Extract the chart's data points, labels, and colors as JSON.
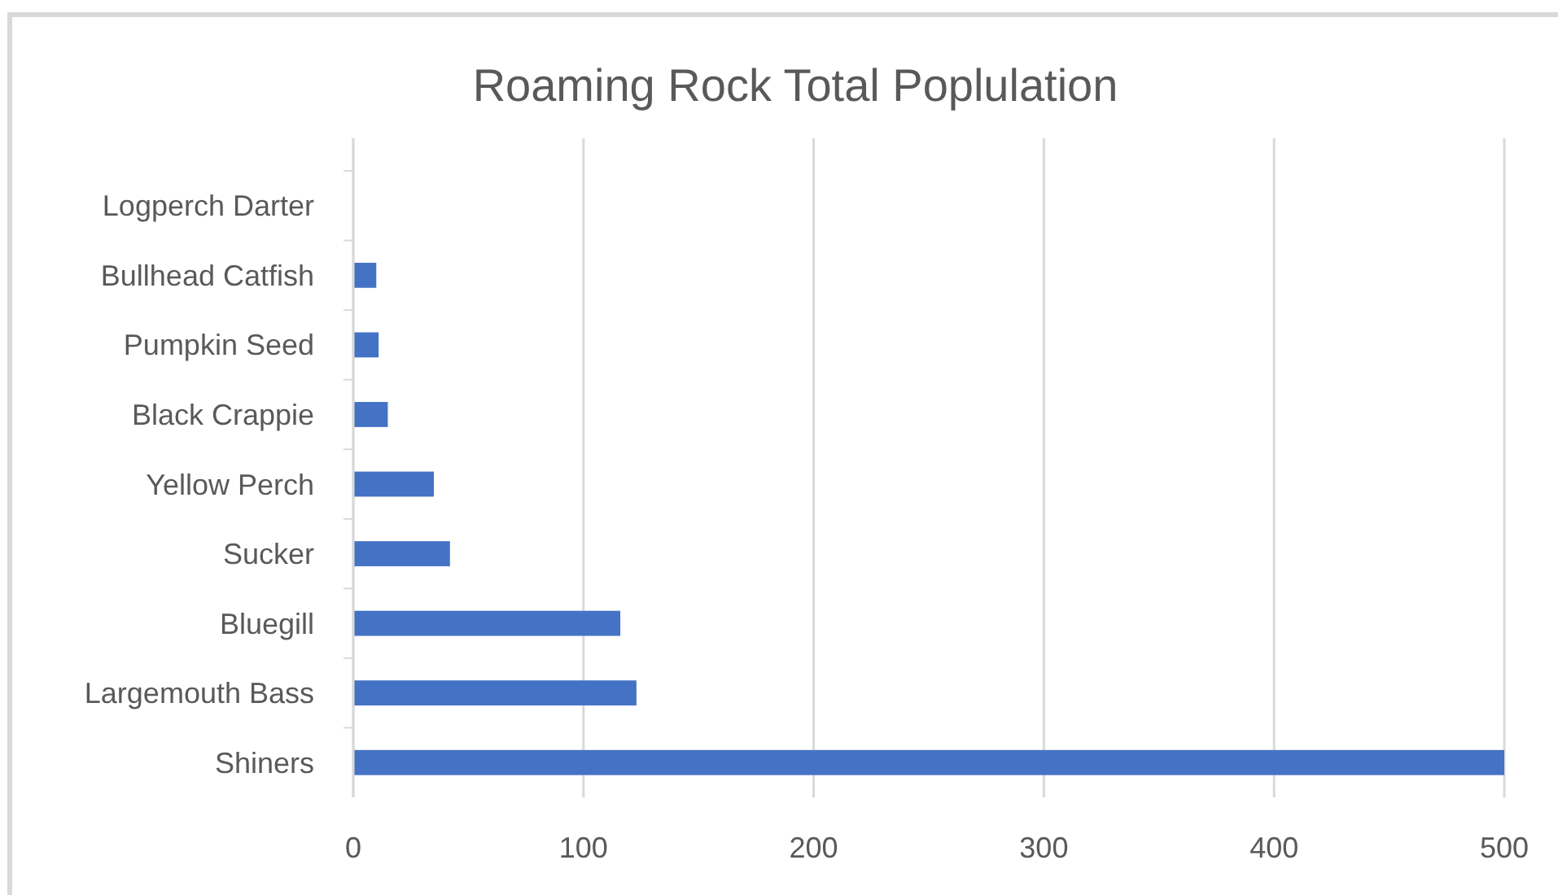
{
  "chart_data": {
    "type": "bar",
    "orientation": "horizontal",
    "title": "Roaming Rock Total Poplulation",
    "categories": [
      "Logperch Darter",
      "Bullhead Catfish",
      "Pumpkin Seed",
      "Black Crappie",
      "Yellow Perch",
      "Sucker",
      "Bluegill",
      "Largemouth Bass",
      "Shiners"
    ],
    "values": [
      0,
      10,
      11,
      15,
      35,
      42,
      116,
      123,
      500
    ],
    "color": "#4472c4",
    "xlim": [
      0,
      500
    ],
    "xticks": [
      0,
      100,
      200,
      300,
      400,
      500
    ],
    "grid": "x"
  }
}
